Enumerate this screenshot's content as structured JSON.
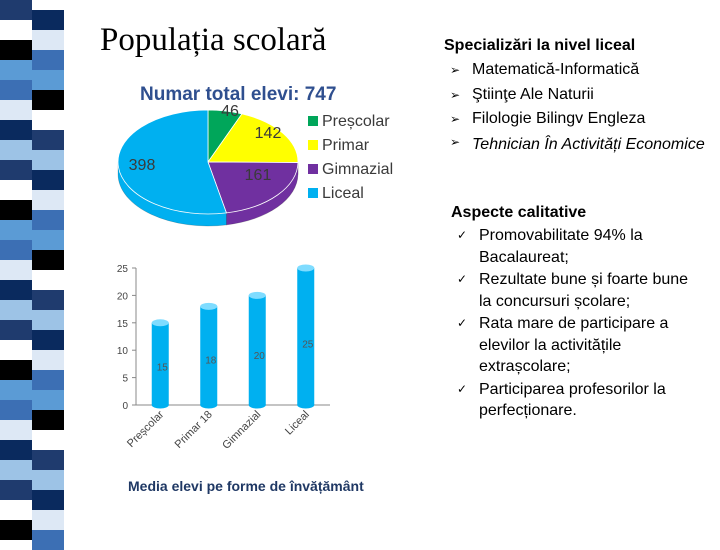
{
  "title": "Populația scolară",
  "colors": {
    "stripe": [
      "#1f3b6e",
      "#5b9bd5",
      "#0a2a5e",
      "#ffffff",
      "#3c6fb4",
      "#9dc3e6",
      "#000000",
      "#dde8f5"
    ],
    "pie": [
      "#00a65a",
      "#ffff00",
      "#7030a0",
      "#00b0f0"
    ],
    "bar": "#00b0f0"
  },
  "pie_chart": {
    "title_text": "Numar total elevi:",
    "title_value": "747"
  },
  "specializari": {
    "heading": "Specializări la nivel liceal",
    "items": [
      "Matematică-Informatică",
      "Ştiinţe Ale Naturii",
      "Filologie Bilingv Engleza",
      "Tehnician În Activități Economice"
    ]
  },
  "aspecte": {
    "heading": "Aspecte calitative",
    "items": [
      "Promovabilitate 94% la Bacalaureat;",
      "Rezultate bune și foarte bune la concursuri școlare;",
      "Rata mare de participare a elevilor la activitățile extrașcolare;",
      "Participarea profesorilor la perfecționare."
    ]
  },
  "chart_data": [
    {
      "type": "pie",
      "title": "Numar total elevi: 747",
      "categories": [
        "Preșcolar",
        "Primar",
        "Gimnazial",
        "Liceal"
      ],
      "values": [
        46,
        142,
        161,
        398
      ],
      "legend": "right"
    },
    {
      "type": "bar",
      "title": "Media elevi pe forme de învățământ",
      "categories": [
        "Preșcolar",
        "Primar 18",
        "Gimnazial",
        "Liceal"
      ],
      "values": [
        15,
        18,
        20,
        25
      ],
      "ylim": [
        0,
        25
      ],
      "yticks": [
        0,
        5,
        10,
        15,
        20,
        25
      ],
      "grid": false
    }
  ]
}
